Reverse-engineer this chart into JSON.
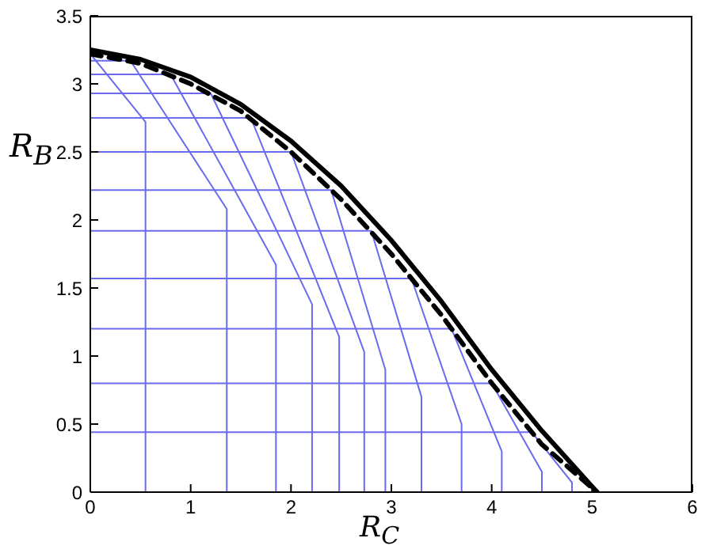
{
  "chart_data": {
    "type": "line",
    "xlabel": "R$_{C}$",
    "ylabel": "R$_{B}$",
    "xlim": [
      0,
      6
    ],
    "xticks": [
      0,
      1,
      2,
      3,
      4,
      5,
      6
    ],
    "ylim": [
      0,
      3.5
    ],
    "yticks": [
      0,
      0.5,
      1,
      1.5,
      2,
      2.5,
      3,
      3.5
    ],
    "marker": "none",
    "series": [
      {
        "color": "#6a6af0",
        "line_style": "solid",
        "x": [
          0,
          0,
          0.55,
          0.55
        ],
        "values": [
          3.22,
          3.22,
          2.72,
          0
        ]
      },
      {
        "color": "#6a6af0",
        "line_style": "solid",
        "x": [
          0,
          0.4,
          1.36,
          1.36
        ],
        "values": [
          3.17,
          3.17,
          2.08,
          0
        ]
      },
      {
        "color": "#6a6af0",
        "line_style": "solid",
        "x": [
          0,
          0.8,
          1.85,
          1.85
        ],
        "values": [
          3.07,
          3.07,
          1.67,
          0
        ]
      },
      {
        "color": "#6a6af0",
        "line_style": "solid",
        "x": [
          0,
          1.2,
          2.21,
          2.21
        ],
        "values": [
          2.93,
          2.93,
          1.38,
          0
        ]
      },
      {
        "color": "#6a6af0",
        "line_style": "solid",
        "x": [
          0,
          1.6,
          2.48,
          2.48
        ],
        "values": [
          2.75,
          2.75,
          1.14,
          0
        ]
      },
      {
        "color": "#6a6af0",
        "line_style": "solid",
        "x": [
          0,
          2.0,
          2.73,
          2.73
        ],
        "values": [
          2.5,
          2.5,
          1.03,
          0
        ]
      },
      {
        "color": "#6a6af0",
        "line_style": "solid",
        "x": [
          0,
          2.4,
          2.94,
          2.94
        ],
        "values": [
          2.22,
          2.22,
          0.9,
          0
        ]
      },
      {
        "color": "#6a6af0",
        "line_style": "solid",
        "x": [
          0,
          2.8,
          3.3,
          3.3
        ],
        "values": [
          1.92,
          1.92,
          0.7,
          0
        ]
      },
      {
        "color": "#6a6af0",
        "line_style": "solid",
        "x": [
          0,
          3.2,
          3.7,
          3.7
        ],
        "values": [
          1.57,
          1.57,
          0.5,
          0
        ]
      },
      {
        "color": "#6a6af0",
        "line_style": "solid",
        "x": [
          0,
          3.6,
          4.1,
          4.1
        ],
        "values": [
          1.2,
          1.2,
          0.3,
          0
        ]
      },
      {
        "color": "#6a6af0",
        "line_style": "solid",
        "x": [
          0,
          4.0,
          4.5,
          4.5
        ],
        "values": [
          0.8,
          0.8,
          0.15,
          0
        ]
      },
      {
        "color": "#6a6af0",
        "line_style": "solid",
        "x": [
          0,
          4.4,
          4.8,
          4.8
        ],
        "values": [
          0.44,
          0.44,
          0.07,
          0
        ]
      },
      {
        "color": "#000000",
        "line_style": "dashed",
        "x": [
          0,
          0.5,
          1,
          1.5,
          2,
          2.5,
          3,
          3.5,
          4,
          4.5,
          5.05
        ],
        "values": [
          3.22,
          3.15,
          3.0,
          2.8,
          2.5,
          2.15,
          1.75,
          1.3,
          0.8,
          0.35,
          0
        ]
      },
      {
        "color": "#000000",
        "line_style": "solid",
        "x": [
          0,
          0.5,
          1,
          1.5,
          2,
          2.5,
          3,
          3.5,
          4,
          4.5,
          5.05
        ],
        "values": [
          3.25,
          3.18,
          3.05,
          2.85,
          2.58,
          2.25,
          1.85,
          1.4,
          0.9,
          0.45,
          0
        ]
      }
    ]
  }
}
